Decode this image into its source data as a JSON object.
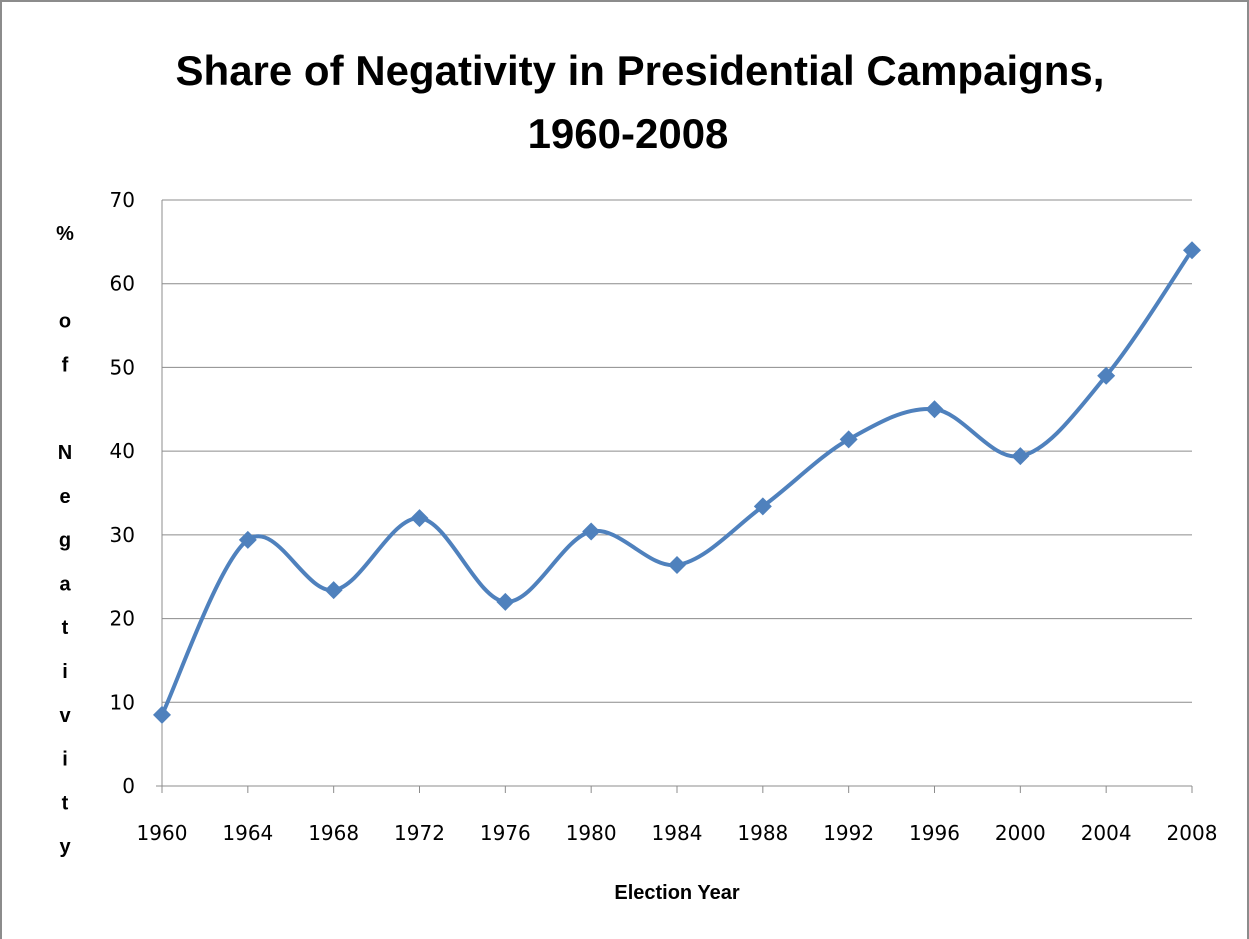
{
  "chart_data": {
    "type": "line",
    "title_lines": [
      "Share of Negativity in Presidential Campaigns,",
      "1960-2008"
    ],
    "xlabel": "Election Year",
    "ylabel": "% of Negativity",
    "x": [
      "1960",
      "1964",
      "1968",
      "1972",
      "1976",
      "1980",
      "1984",
      "1988",
      "1992",
      "1996",
      "2000",
      "2004",
      "2008"
    ],
    "series": [
      {
        "values": [
          8.5,
          29.4,
          23.4,
          32.0,
          22.0,
          30.4,
          26.4,
          33.4,
          41.4,
          45.0,
          39.4,
          49.0,
          64.0
        ]
      }
    ],
    "ylim": [
      0,
      70
    ],
    "yticks": [
      "0",
      "10",
      "20",
      "30",
      "40",
      "50",
      "60",
      "70"
    ],
    "smooth": true,
    "marker": "diamond",
    "grid": "horizontal",
    "legend": "none",
    "colors": {
      "series": "#4f81bd",
      "grid": "#8c8c8c",
      "axis": "#8c8c8c"
    }
  }
}
